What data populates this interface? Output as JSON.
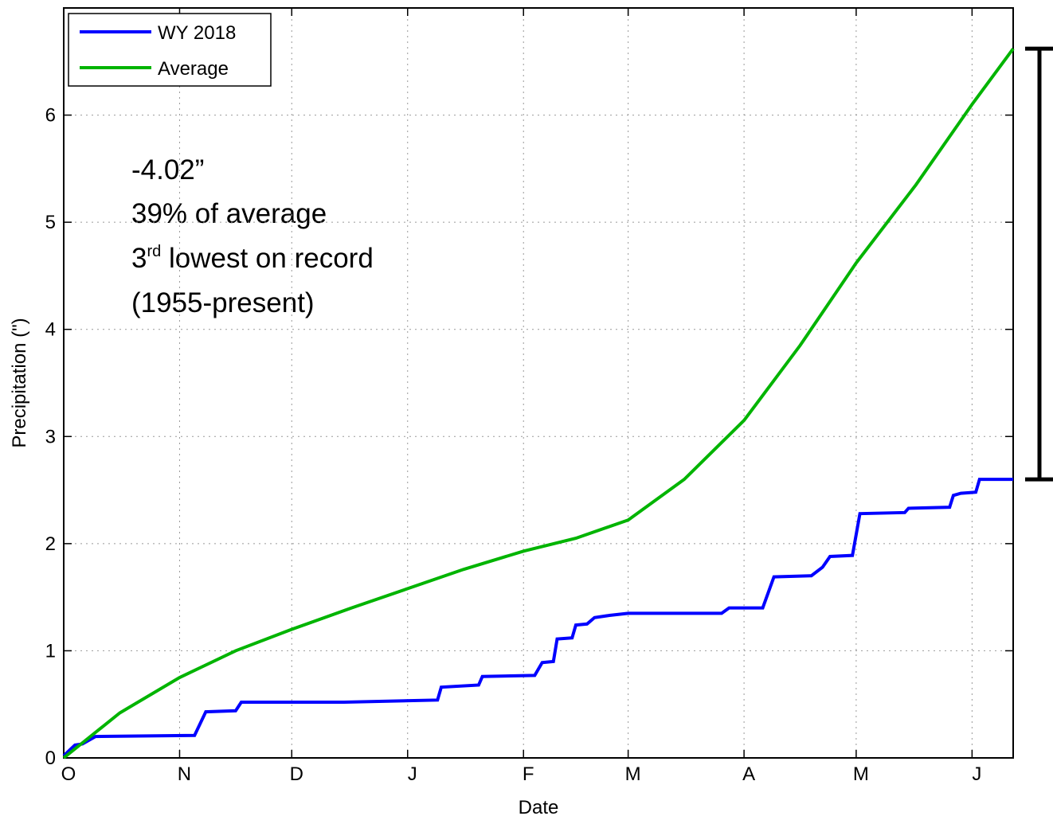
{
  "chart_data": {
    "type": "line",
    "xlabel": "Date",
    "ylabel": "Precipitation (\")",
    "xlim": [
      0,
      254
    ],
    "ylim": [
      0,
      7
    ],
    "xticks": [
      {
        "value": 0,
        "label": "O"
      },
      {
        "value": 31,
        "label": "N"
      },
      {
        "value": 61,
        "label": "D"
      },
      {
        "value": 92,
        "label": "J"
      },
      {
        "value": 123,
        "label": "F"
      },
      {
        "value": 151,
        "label": "M"
      },
      {
        "value": 182,
        "label": "A"
      },
      {
        "value": 212,
        "label": "M"
      },
      {
        "value": 243,
        "label": "J"
      }
    ],
    "yticks": [
      0,
      1,
      2,
      3,
      4,
      5,
      6
    ],
    "grid": true,
    "legend": "upper left",
    "series": [
      {
        "name": "WY 2018",
        "color": "#0000ff",
        "x": [
          0,
          3,
          5,
          8.5,
          35,
          38,
          46,
          47.5,
          75,
          100,
          101,
          111,
          112,
          126,
          128,
          131,
          132,
          136,
          137,
          140,
          142,
          146,
          151,
          176,
          178,
          187,
          190,
          200,
          203,
          205,
          211,
          213,
          225,
          226,
          237,
          238,
          240,
          244,
          245,
          254
        ],
        "values": [
          0.02,
          0.12,
          0.13,
          0.2,
          0.21,
          0.43,
          0.44,
          0.52,
          0.52,
          0.54,
          0.66,
          0.68,
          0.76,
          0.77,
          0.89,
          0.9,
          1.11,
          1.12,
          1.24,
          1.25,
          1.31,
          1.33,
          1.35,
          1.35,
          1.4,
          1.4,
          1.69,
          1.7,
          1.78,
          1.88,
          1.89,
          2.28,
          2.29,
          2.33,
          2.34,
          2.45,
          2.47,
          2.48,
          2.6,
          2.6
        ]
      },
      {
        "name": "Average",
        "color": "#00b400",
        "x": [
          0,
          15,
          31,
          46,
          61,
          77,
          92,
          107,
          123,
          137,
          151,
          166,
          182,
          197,
          212,
          228,
          243,
          254
        ],
        "values": [
          0,
          0.42,
          0.75,
          1.0,
          1.2,
          1.4,
          1.58,
          1.76,
          1.93,
          2.05,
          2.22,
          2.6,
          3.15,
          3.85,
          4.62,
          5.35,
          6.1,
          6.62
        ]
      }
    ],
    "annotations": [
      "-4.02”",
      "39% of average",
      {
        "number": "3",
        "suffix": "rd",
        "rest": " lowest on record"
      },
      "(1955-present)"
    ]
  }
}
